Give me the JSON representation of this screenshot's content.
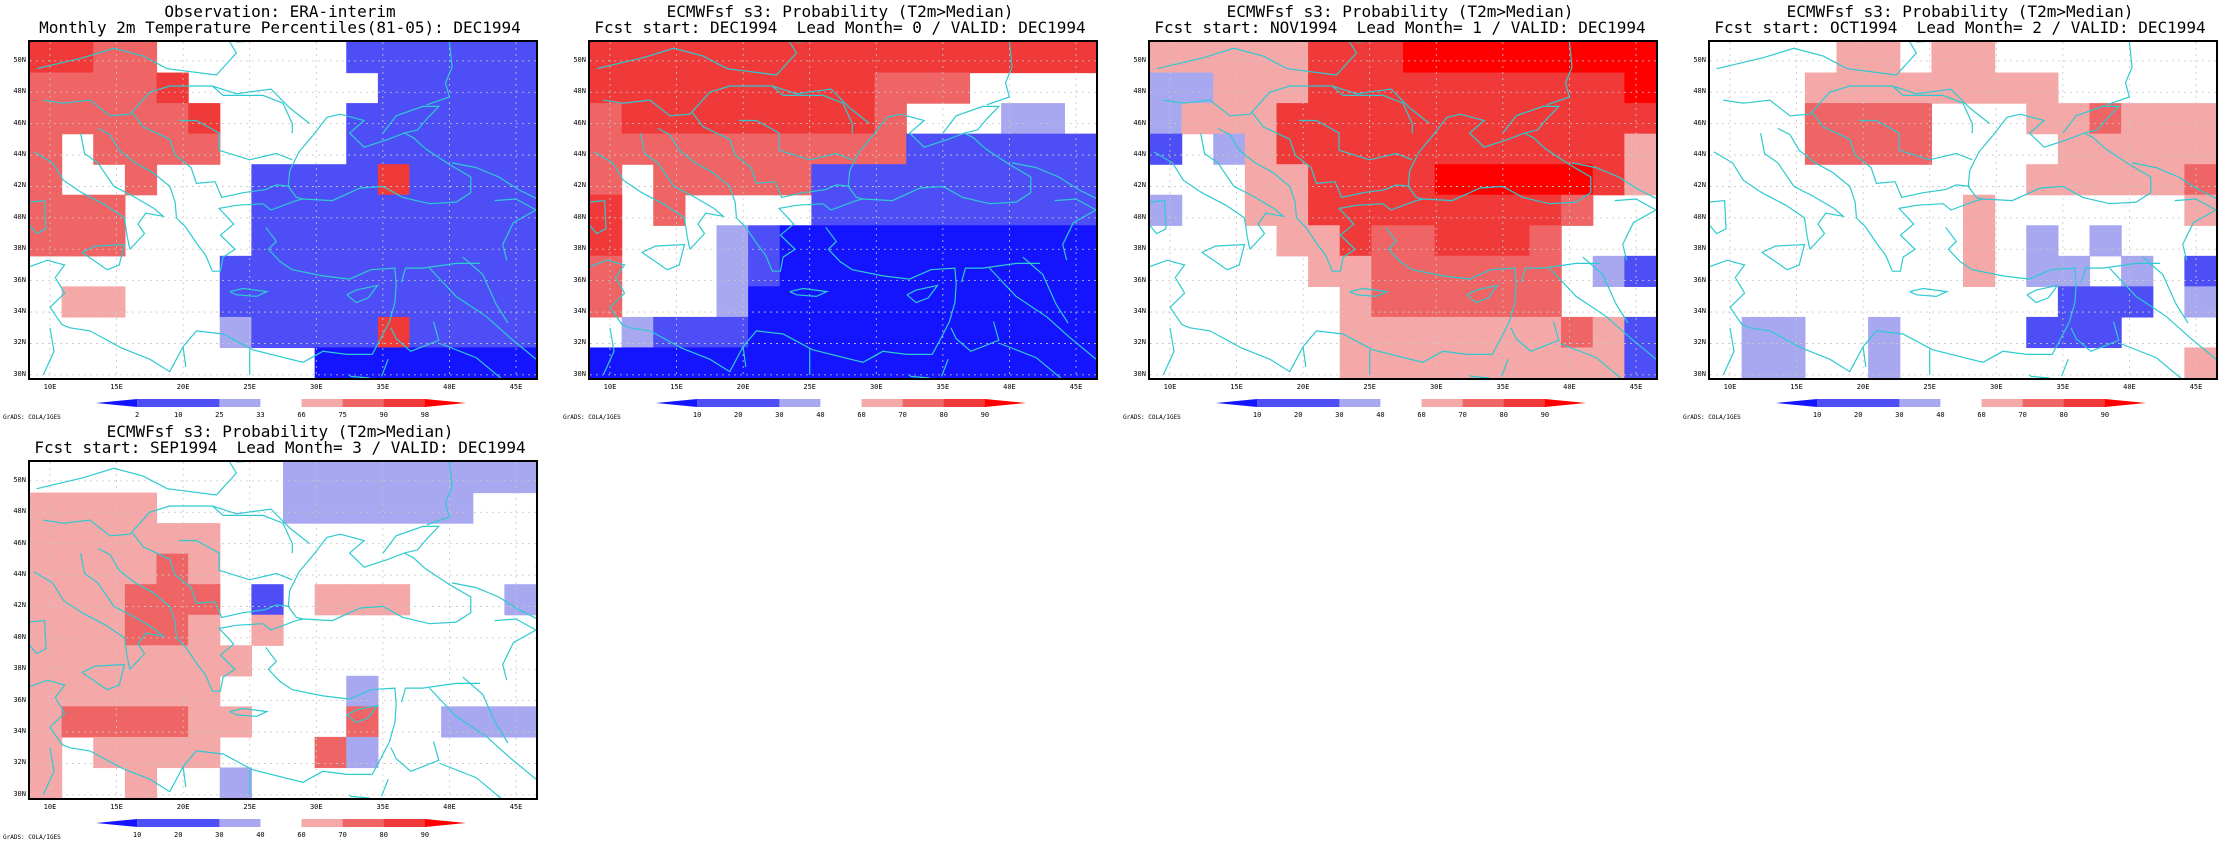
{
  "colors": {
    "blue3": "#1414ff",
    "blue2": "#4e4ef7",
    "blue1": "#a8a8f0",
    "red1": "#f4a8a8",
    "red2": "#ef6464",
    "red3": "#f03a3a",
    "red4": "#ff0000",
    "coast": "#2ecad0",
    "grid": "#c8c8c8"
  },
  "axes": {
    "y_labels": [
      "50N",
      "48N",
      "46N",
      "44N",
      "42N",
      "40N",
      "38N",
      "36N",
      "34N",
      "32N",
      "30N"
    ],
    "x_labels": [
      "10E",
      "15E",
      "20E",
      "25E",
      "30E",
      "35E",
      "40E",
      "45E"
    ]
  },
  "credit": "GrADS: COLA/IGES",
  "panels": [
    {
      "title1": "Observation: ERA-interim",
      "title2": "Monthly 2m Temperature Percentiles(81-05): DEC1994",
      "colorbar_labels": [
        "2",
        "10",
        "25",
        "33",
        "66",
        "75",
        "90",
        "98"
      ],
      "grid": [
        "3322000000BBBBBB",
        "22223000000BBBBB",
        "2222230000BBBBBB",
        "2022220000BBBBBB",
        "2002000BBBB3BBBB",
        "2220000BBBBBBBBB",
        "2220000BBBBBBBBB",
        "000000BBBBBBBBBB",
        "011000BBBBBBBBBB",
        "000000ABBBB3BBBB",
        "000000000CCCCCCC"
      ]
    },
    {
      "title1": "ECMWFsf s3: Probability (T2m>Median)",
      "title2": "Fcst start: DEC1994  Lead Month= 0 / VALID: DEC1994",
      "colorbar_labels": [
        "10",
        "20",
        "30",
        "40",
        "60",
        "70",
        "80",
        "90"
      ],
      "grid": [
        "3333333333333333",
        "3333333332220000",
        "2333333332000AA0",
        "2222222222BBBBBB",
        "2022222BBBBBBBBB",
        "3020000BBBBBBBBB",
        "3000ABCCCCCCCCCC",
        "2000ABCCCCCCCCCC",
        "2000ACCCCCCCCCCC",
        "0ABBBCCCCCCCCCCC",
        "CCCCCCCCCCCCCCCC"
      ]
    },
    {
      "title1": "ECMWFsf s3: Probability (T2m>Median)",
      "title2": "Fcst start: NOV1994  Lead Month= 1 / VALID: DEC1994",
      "colorbar_labels": [
        "10",
        "20",
        "30",
        "40",
        "60",
        "70",
        "80",
        "90"
      ],
      "grid": [
        "1111133344444444",
        "AA11133333333334",
        "A111333333333333",
        "B0A1333333333331",
        "0001133334444431",
        "A001133333333200",
        "0000113223332000",
        "00000112222220AB",
        "0000001222222000",
        "000000111111121B",
        "000000111111111B"
      ]
    },
    {
      "title1": "ECMWFsf s3: Probability (T2m>Median)",
      "title2": "Fcst start: OCT1994  Lead Month= 2 / VALID: DEC1994",
      "colorbar_labels": [
        "10",
        "20",
        "30",
        "40",
        "60",
        "70",
        "80",
        "90"
      ],
      "grid": [
        "0000110110000000",
        "0001111111100000",
        "0002222000112111",
        "0002222000011111",
        "0000000000111112",
        "0000000010000001",
        "0000000010A0A000",
        "0000000010AA0A0B",
        "00000000000BBB0A",
        "0AA00A0000BBB000",
        "0AA00A0000000001"
      ]
    },
    {
      "title1": "ECMWFsf s3: Probability (T2m>Median)",
      "title2": "Fcst start: SEP1994  Lead Month= 3 / VALID: DEC1994",
      "colorbar_labels": [
        "10",
        "20",
        "30",
        "40",
        "60",
        "70",
        "80",
        "90"
      ],
      "grid": [
        "00000000AAAAAAAA",
        "11110000AAAAAA00",
        "1111110000000000",
        "1111210000000000",
        "1112220B0111000A",
        "1112210100000000",
        "1111111000000000",
        "1111110000A00000",
        "1222211000200AAA",
        "1011110002A00000",
        "100100A000000000"
      ]
    }
  ]
}
